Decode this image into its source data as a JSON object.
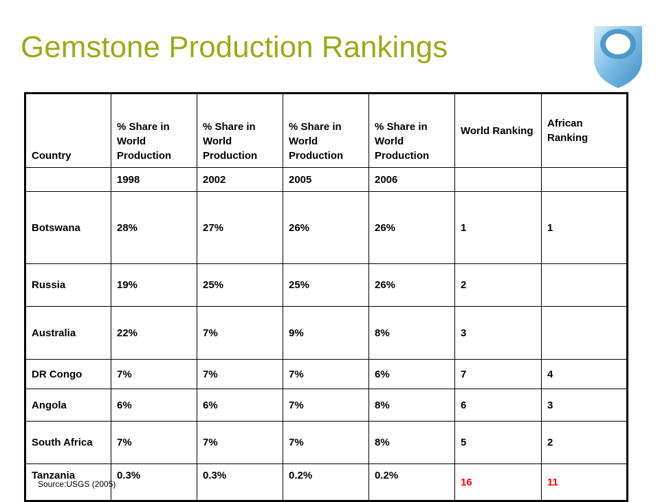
{
  "slide": {
    "title": "Gemstone Production Rankings",
    "source": "Source:USGS (2005)"
  },
  "table": {
    "headers": [
      "Country",
      "% Share in World Production",
      "% Share in World Production",
      "% Share in World Production",
      "% Share in World Production",
      "World Ranking",
      "African Ranking"
    ],
    "years": [
      "",
      "1998",
      "2002",
      "2005",
      "2006",
      "",
      ""
    ],
    "rows": [
      {
        "country": "Botswana",
        "y1998": "28%",
        "y2002": "27%",
        "y2005": "26%",
        "y2006": "26%",
        "world_rank": "1",
        "african_rank": "1"
      },
      {
        "country": "Russia",
        "y1998": "19%",
        "y2002": "25%",
        "y2005": "25%",
        "y2006": "26%",
        "world_rank": "2",
        "african_rank": ""
      },
      {
        "country": "Australia",
        "y1998": "22%",
        "y2002": "7%",
        "y2005": "9%",
        "y2006": "8%",
        "world_rank": "3",
        "african_rank": ""
      },
      {
        "country": "DR Congo",
        "y1998": "7%",
        "y2002": "7%",
        "y2005": "7%",
        "y2006": "6%",
        "world_rank": "7",
        "african_rank": "4"
      },
      {
        "country": "Angola",
        "y1998": "6%",
        "y2002": "6%",
        "y2005": "7%",
        "y2006": "8%",
        "world_rank": "6",
        "african_rank": "3"
      },
      {
        "country": "South Africa",
        "y1998": "7%",
        "y2002": "7%",
        "y2005": "7%",
        "y2006": "8%",
        "world_rank": "5",
        "african_rank": "2"
      },
      {
        "country": "Tanzania",
        "y1998": "0.3%",
        "y2002": "0.3%",
        "y2005": "0.2%",
        "y2006": "0.2%",
        "world_rank": "16",
        "african_rank": "11"
      }
    ]
  },
  "colors": {
    "title": "#9aab1a",
    "highlight": "#ff0000",
    "logo_blue": "#5ea8d8"
  },
  "icons": [
    "open-university-logo"
  ]
}
